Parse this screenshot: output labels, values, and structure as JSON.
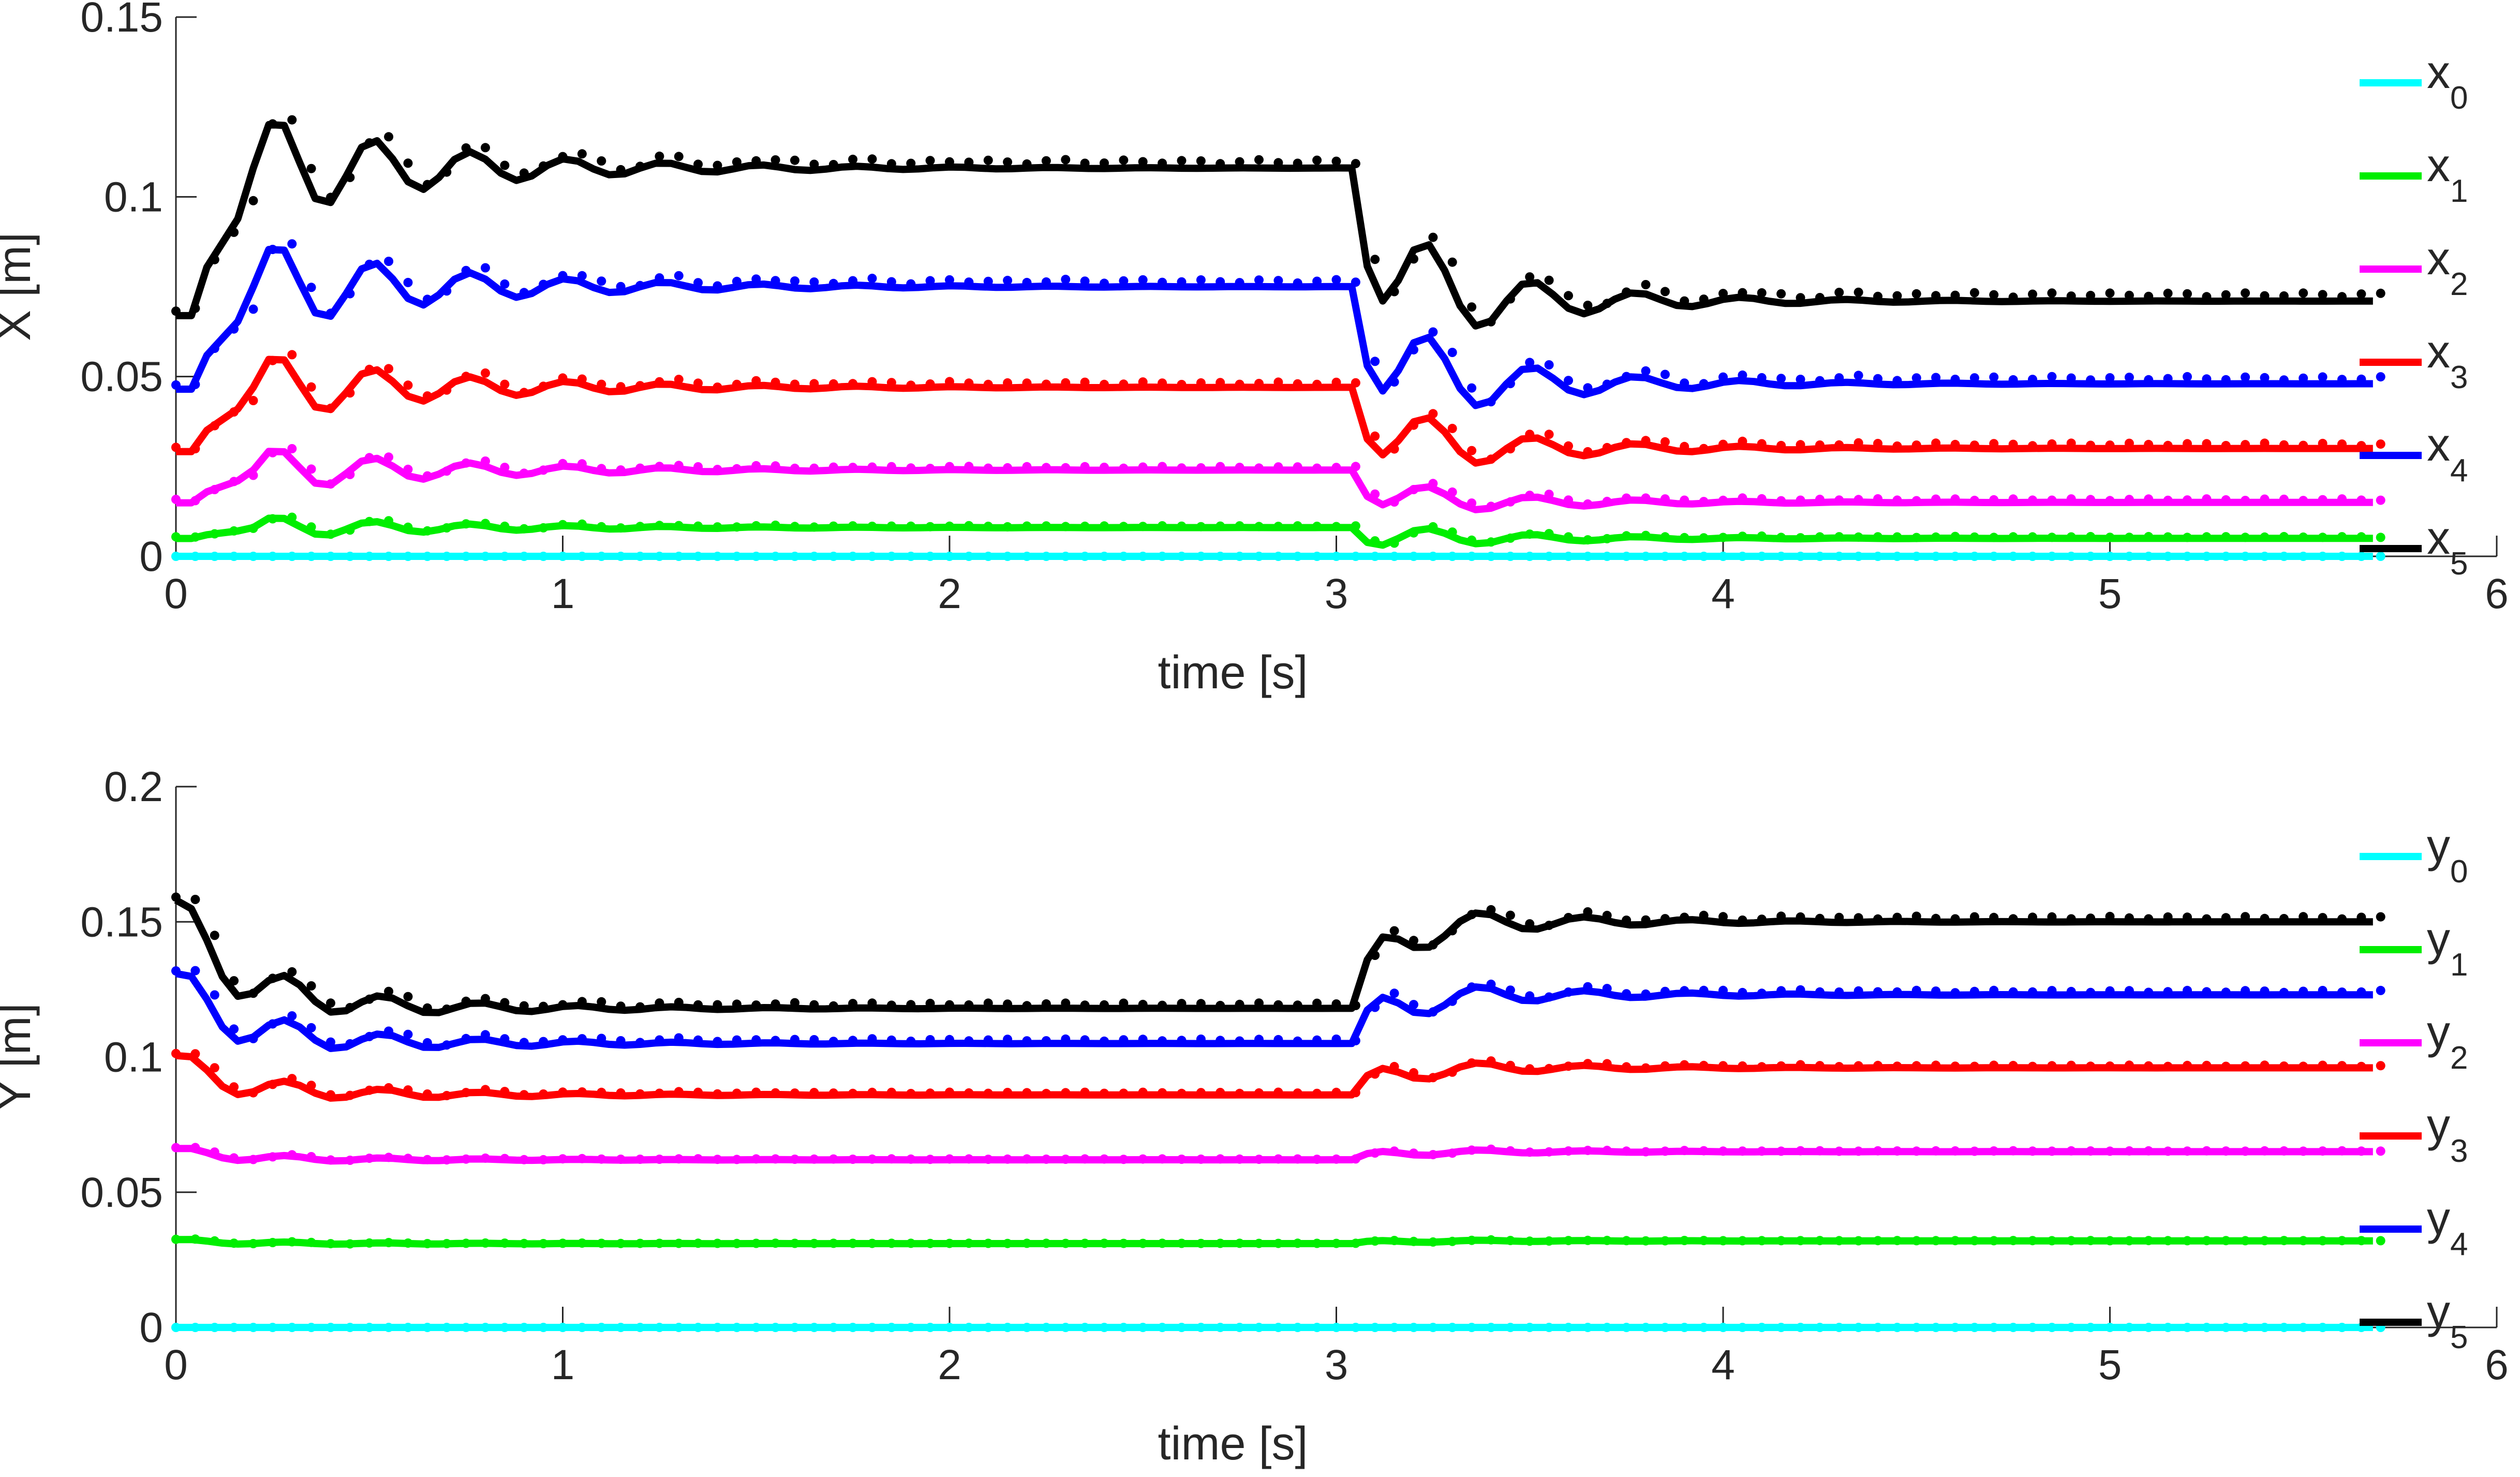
{
  "chart_data": [
    {
      "type": "line",
      "xlabel": "time [s]",
      "ylabel": "X [m]",
      "xlim": [
        0,
        6
      ],
      "ylim": [
        0,
        0.15
      ],
      "xticks": [
        "0",
        "1",
        "2",
        "3",
        "4",
        "5",
        "6"
      ],
      "yticks": [
        "0",
        "0.05",
        "0.1",
        "0.15"
      ],
      "grid": false,
      "legend_position": "right",
      "markers": "dots = measured, line = model",
      "series": [
        {
          "name": "x",
          "sub": "0",
          "color": "#00FFFF",
          "level1": 0.0,
          "level2": 0.0,
          "osc": 0.0,
          "drop": 0.0
        },
        {
          "name": "x",
          "sub": "1",
          "color": "#00EE00",
          "level1": 0.008,
          "level2": 0.005,
          "osc": 0.003,
          "drop": 0.007
        },
        {
          "name": "x",
          "sub": "2",
          "color": "#FF00FF",
          "level1": 0.024,
          "level2": 0.015,
          "osc": 0.006,
          "drop": 0.01
        },
        {
          "name": "x",
          "sub": "3",
          "color": "#FF0000",
          "level1": 0.047,
          "level2": 0.03,
          "osc": 0.009,
          "drop": 0.02
        },
        {
          "name": "x",
          "sub": "4",
          "color": "#0000FF",
          "level1": 0.075,
          "level2": 0.048,
          "osc": 0.012,
          "drop": 0.03
        },
        {
          "name": "x",
          "sub": "5",
          "color": "#000000",
          "level1": 0.108,
          "level2": 0.071,
          "osc": 0.014,
          "drop": 0.035
        }
      ]
    },
    {
      "type": "line",
      "xlabel": "time [s]",
      "ylabel": "Y [m]",
      "xlim": [
        0,
        6
      ],
      "ylim": [
        0,
        0.2
      ],
      "xticks": [
        "0",
        "1",
        "2",
        "3",
        "4",
        "5",
        "6"
      ],
      "yticks": [
        "0",
        "0.05",
        "0.1",
        "0.15",
        "0.2"
      ],
      "grid": false,
      "legend_position": "right",
      "markers": "dots = measured, line = model",
      "series": [
        {
          "name": "y",
          "sub": "0",
          "color": "#00FFFF",
          "start": 0.0,
          "level1": 0.0,
          "level2": 0.0,
          "osc": 0.0
        },
        {
          "name": "y",
          "sub": "1",
          "color": "#00EE00",
          "start": 0.032,
          "level1": 0.031,
          "level2": 0.032,
          "osc": 0.0008
        },
        {
          "name": "y",
          "sub": "2",
          "color": "#FF00FF",
          "start": 0.065,
          "level1": 0.062,
          "level2": 0.065,
          "osc": 0.002
        },
        {
          "name": "y",
          "sub": "3",
          "color": "#FF0000",
          "start": 0.097,
          "level1": 0.086,
          "level2": 0.096,
          "osc": 0.006
        },
        {
          "name": "y",
          "sub": "4",
          "color": "#0000FF",
          "start": 0.125,
          "level1": 0.105,
          "level2": 0.123,
          "osc": 0.01
        },
        {
          "name": "y",
          "sub": "5",
          "color": "#000000",
          "start": 0.151,
          "level1": 0.118,
          "level2": 0.15,
          "osc": 0.012
        }
      ]
    }
  ]
}
